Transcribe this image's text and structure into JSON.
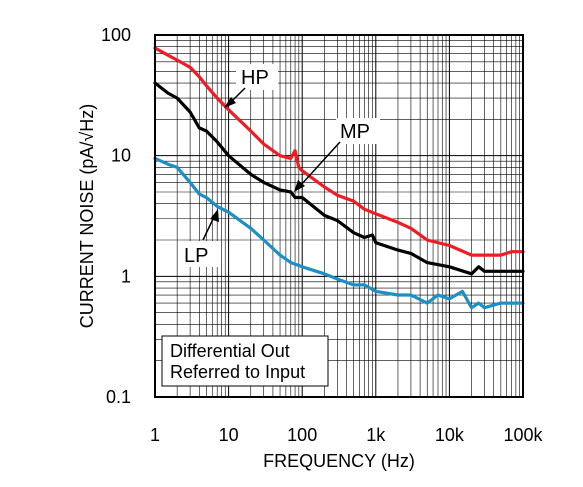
{
  "chart_data": {
    "type": "line",
    "xlabel": "FREQUENCY (Hz)",
    "ylabel": "CURRENT NOISE (pA/√Hz)",
    "xscale": "log",
    "yscale": "log",
    "xlim": [
      1,
      100000
    ],
    "ylim": [
      0.1,
      100
    ],
    "grid": true,
    "x_ticks": [
      "1",
      "10",
      "100",
      "1k",
      "10k",
      "100k"
    ],
    "y_ticks": [
      "0.1",
      "1",
      "10",
      "100"
    ],
    "annotation_lines": [
      "Differential Out",
      "Referred to Input"
    ],
    "series": [
      {
        "name": "HP",
        "color": "#ee1c24",
        "points": [
          [
            1,
            78
          ],
          [
            1.5,
            68
          ],
          [
            2,
            62
          ],
          [
            3,
            54
          ],
          [
            4,
            45
          ],
          [
            5,
            38
          ],
          [
            7,
            30
          ],
          [
            10,
            24
          ],
          [
            20,
            16
          ],
          [
            30,
            12.5
          ],
          [
            50,
            10
          ],
          [
            70,
            9.5
          ],
          [
            80,
            11
          ],
          [
            90,
            8
          ],
          [
            100,
            7.5
          ],
          [
            200,
            5.5
          ],
          [
            300,
            4.7
          ],
          [
            500,
            4.2
          ],
          [
            700,
            3.6
          ],
          [
            1000,
            3.3
          ],
          [
            2000,
            2.8
          ],
          [
            3000,
            2.5
          ],
          [
            5000,
            2.0
          ],
          [
            10000,
            1.8
          ],
          [
            20000,
            1.5
          ],
          [
            30000,
            1.5
          ],
          [
            50000,
            1.5
          ],
          [
            70000,
            1.6
          ],
          [
            100000,
            1.6
          ]
        ]
      },
      {
        "name": "MP",
        "color": "#000000",
        "points": [
          [
            1,
            40
          ],
          [
            1.5,
            33
          ],
          [
            2,
            30
          ],
          [
            3,
            23
          ],
          [
            4,
            17
          ],
          [
            5,
            16
          ],
          [
            7,
            13
          ],
          [
            10,
            10
          ],
          [
            20,
            7
          ],
          [
            30,
            6
          ],
          [
            50,
            5.2
          ],
          [
            70,
            5
          ],
          [
            80,
            4.5
          ],
          [
            100,
            4.5
          ],
          [
            200,
            3.2
          ],
          [
            300,
            2.9
          ],
          [
            500,
            2.3
          ],
          [
            700,
            2.1
          ],
          [
            900,
            2.2
          ],
          [
            1000,
            1.9
          ],
          [
            2000,
            1.65
          ],
          [
            3000,
            1.55
          ],
          [
            5000,
            1.3
          ],
          [
            10000,
            1.2
          ],
          [
            20000,
            1.05
          ],
          [
            25000,
            1.2
          ],
          [
            30000,
            1.1
          ],
          [
            50000,
            1.1
          ],
          [
            100000,
            1.1
          ]
        ]
      },
      {
        "name": "LP",
        "color": "#1b8fc6",
        "points": [
          [
            1,
            9.5
          ],
          [
            1.5,
            8.5
          ],
          [
            2,
            8
          ],
          [
            3,
            6
          ],
          [
            4,
            4.8
          ],
          [
            5,
            4.5
          ],
          [
            7,
            3.8
          ],
          [
            10,
            3.4
          ],
          [
            20,
            2.5
          ],
          [
            30,
            2.0
          ],
          [
            50,
            1.5
          ],
          [
            70,
            1.3
          ],
          [
            100,
            1.2
          ],
          [
            200,
            1.05
          ],
          [
            300,
            0.95
          ],
          [
            500,
            0.85
          ],
          [
            700,
            0.85
          ],
          [
            1000,
            0.75
          ],
          [
            2000,
            0.7
          ],
          [
            3000,
            0.7
          ],
          [
            5000,
            0.6
          ],
          [
            7000,
            0.7
          ],
          [
            10000,
            0.65
          ],
          [
            15000,
            0.75
          ],
          [
            20000,
            0.55
          ],
          [
            25000,
            0.6
          ],
          [
            30000,
            0.55
          ],
          [
            50000,
            0.6
          ],
          [
            100000,
            0.6
          ]
        ]
      }
    ]
  }
}
